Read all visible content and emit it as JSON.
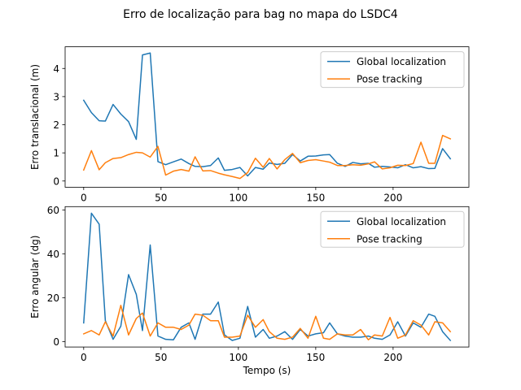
{
  "figure": {
    "title": "Erro de localização para bag no mapa do LSDC4"
  },
  "colors": {
    "global": "#1f77b4",
    "pose": "#ff7f0e"
  },
  "chart_data": [
    {
      "type": "line",
      "title": "",
      "xlabel": "",
      "ylabel": "Erro translacional (m)",
      "xlim": [
        -12,
        249
      ],
      "ylim": [
        -0.22,
        4.77
      ],
      "xticks": [
        0,
        50,
        100,
        150,
        200
      ],
      "yticks": [
        0,
        1,
        2,
        3,
        4
      ],
      "grid": false,
      "legend": "top-right",
      "series": [
        {
          "name": "Global localization",
          "x": [
            0,
            5,
            10,
            14,
            19,
            24,
            29,
            34,
            38,
            43,
            48,
            53,
            58,
            63,
            68,
            72,
            77,
            82,
            87,
            91,
            96,
            101,
            106,
            111,
            116,
            120,
            125,
            130,
            135,
            140,
            145,
            150,
            155,
            159,
            164,
            169,
            174,
            179,
            184,
            188,
            193,
            198,
            203,
            208,
            213,
            218,
            223,
            227,
            232,
            237
          ],
          "y": [
            2.87,
            2.43,
            2.14,
            2.13,
            2.72,
            2.38,
            2.11,
            1.48,
            4.48,
            4.55,
            0.69,
            0.58,
            0.68,
            0.78,
            0.62,
            0.52,
            0.51,
            0.55,
            0.82,
            0.38,
            0.41,
            0.48,
            0.18,
            0.48,
            0.42,
            0.64,
            0.59,
            0.63,
            0.94,
            0.71,
            0.88,
            0.89,
            0.93,
            0.94,
            0.63,
            0.52,
            0.66,
            0.61,
            0.63,
            0.49,
            0.52,
            0.5,
            0.47,
            0.58,
            0.47,
            0.51,
            0.44,
            0.45,
            1.15,
            0.79
          ]
        },
        {
          "name": "Pose tracking",
          "x": [
            0,
            5,
            10,
            14,
            19,
            24,
            29,
            34,
            38,
            43,
            48,
            53,
            58,
            63,
            68,
            72,
            77,
            82,
            87,
            91,
            96,
            101,
            106,
            111,
            116,
            120,
            125,
            130,
            135,
            140,
            145,
            150,
            155,
            159,
            164,
            169,
            174,
            179,
            184,
            188,
            193,
            198,
            203,
            208,
            213,
            218,
            223,
            227,
            232,
            237
          ],
          "y": [
            0.39,
            1.08,
            0.4,
            0.65,
            0.8,
            0.83,
            0.94,
            1.02,
            1.0,
            0.85,
            1.23,
            0.21,
            0.35,
            0.41,
            0.35,
            0.86,
            0.36,
            0.37,
            0.28,
            0.22,
            0.16,
            0.09,
            0.3,
            0.81,
            0.49,
            0.8,
            0.43,
            0.76,
            0.98,
            0.65,
            0.73,
            0.76,
            0.71,
            0.67,
            0.55,
            0.55,
            0.58,
            0.56,
            0.61,
            0.68,
            0.43,
            0.47,
            0.56,
            0.55,
            0.62,
            1.38,
            0.63,
            0.63,
            1.62,
            1.5
          ]
        }
      ]
    },
    {
      "type": "line",
      "title": "",
      "xlabel": "Tempo (s)",
      "ylabel": "Erro angular (dg)",
      "xlim": [
        -12,
        249
      ],
      "ylim": [
        -2.5,
        61.5
      ],
      "xticks": [
        0,
        50,
        100,
        150,
        200
      ],
      "yticks": [
        0,
        20,
        40,
        60
      ],
      "grid": false,
      "legend": "top-right",
      "series": [
        {
          "name": "Global localization",
          "x": [
            0,
            5,
            10,
            14,
            19,
            24,
            29,
            34,
            38,
            43,
            48,
            53,
            58,
            63,
            68,
            72,
            77,
            82,
            87,
            91,
            96,
            101,
            106,
            111,
            116,
            120,
            125,
            130,
            135,
            140,
            145,
            150,
            155,
            159,
            164,
            169,
            174,
            179,
            184,
            188,
            193,
            198,
            203,
            208,
            213,
            218,
            223,
            227,
            232,
            237
          ],
          "y": [
            8.5,
            58.5,
            53.5,
            9.5,
            1.0,
            7.0,
            30.5,
            21.5,
            5.0,
            44.0,
            2.5,
            1.0,
            0.8,
            6.5,
            8.5,
            1.0,
            12.5,
            12.5,
            18.0,
            3.0,
            0.5,
            1.5,
            16.0,
            2.0,
            5.5,
            1.5,
            2.5,
            4.5,
            1.0,
            5.5,
            2.5,
            3.5,
            4.0,
            8.5,
            3.5,
            2.5,
            2.0,
            2.0,
            2.5,
            1.5,
            1.0,
            3.0,
            9.0,
            2.5,
            8.5,
            6.5,
            12.5,
            11.5,
            4.5,
            0.5
          ]
        },
        {
          "name": "Pose tracking",
          "x": [
            0,
            5,
            10,
            14,
            19,
            24,
            29,
            34,
            38,
            43,
            48,
            53,
            58,
            63,
            68,
            72,
            77,
            82,
            87,
            91,
            96,
            101,
            106,
            111,
            116,
            120,
            125,
            130,
            135,
            140,
            145,
            150,
            155,
            159,
            164,
            169,
            174,
            179,
            184,
            188,
            193,
            198,
            203,
            208,
            213,
            218,
            223,
            227,
            232,
            237
          ],
          "y": [
            3.5,
            5.0,
            3.0,
            9.0,
            2.5,
            16.5,
            3.0,
            10.5,
            13.0,
            2.5,
            8.5,
            6.5,
            6.5,
            5.5,
            7.5,
            12.5,
            12.0,
            9.5,
            9.5,
            2.0,
            2.0,
            2.5,
            12.0,
            6.5,
            10.0,
            4.5,
            1.5,
            1.0,
            2.0,
            6.0,
            1.5,
            11.5,
            1.5,
            1.0,
            3.5,
            3.0,
            3.0,
            5.5,
            0.8,
            3.0,
            2.5,
            11.0,
            1.5,
            3.0,
            9.5,
            7.5,
            3.0,
            9.0,
            8.5,
            4.5
          ]
        }
      ]
    }
  ]
}
